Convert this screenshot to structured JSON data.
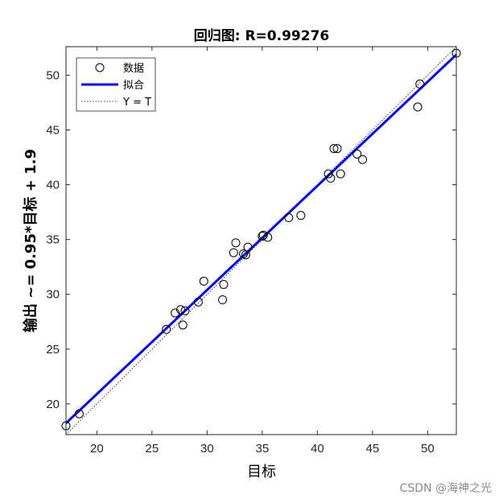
{
  "chart_data": {
    "type": "scatter",
    "title": "回归图: R=0.99276",
    "xlabel": "目标",
    "ylabel": "输出 ~= 0.95*目标 + 1.9",
    "xlim": [
      17.2,
      52.6
    ],
    "ylim": [
      17.2,
      52.6
    ],
    "xticks": [
      20,
      25,
      30,
      35,
      40,
      45,
      50
    ],
    "yticks": [
      20,
      25,
      30,
      35,
      40,
      45,
      50
    ],
    "legend": {
      "position": "top-left",
      "entries": [
        "数据",
        "拟合",
        "Y = T"
      ]
    },
    "series": [
      {
        "name": "数据",
        "x": [
          17.2,
          18.4,
          26.3,
          27.1,
          27.6,
          27.8,
          28.0,
          29.2,
          29.7,
          31.4,
          31.5,
          32.4,
          32.6,
          33.3,
          33.5,
          33.7,
          35.0,
          35.1,
          35.5,
          37.4,
          38.5,
          41.0,
          41.2,
          41.5,
          41.8,
          42.1,
          43.6,
          44.1,
          49.1,
          49.3,
          52.6
        ],
        "y": [
          18.0,
          19.1,
          26.8,
          28.3,
          28.6,
          27.2,
          28.5,
          29.3,
          31.2,
          29.5,
          30.9,
          33.8,
          34.7,
          33.7,
          33.6,
          34.3,
          35.3,
          35.4,
          35.2,
          37.0,
          37.2,
          41.0,
          40.6,
          43.3,
          43.3,
          41.0,
          42.8,
          42.3,
          47.1,
          49.2,
          52.0
        ]
      },
      {
        "name": "拟合",
        "slope": 0.95,
        "intercept": 1.9,
        "color": "#0000ff"
      },
      {
        "name": "Y = T",
        "slope": 1,
        "intercept": 0,
        "color": "#000000"
      }
    ]
  },
  "watermark": "CSDN @海神之光"
}
